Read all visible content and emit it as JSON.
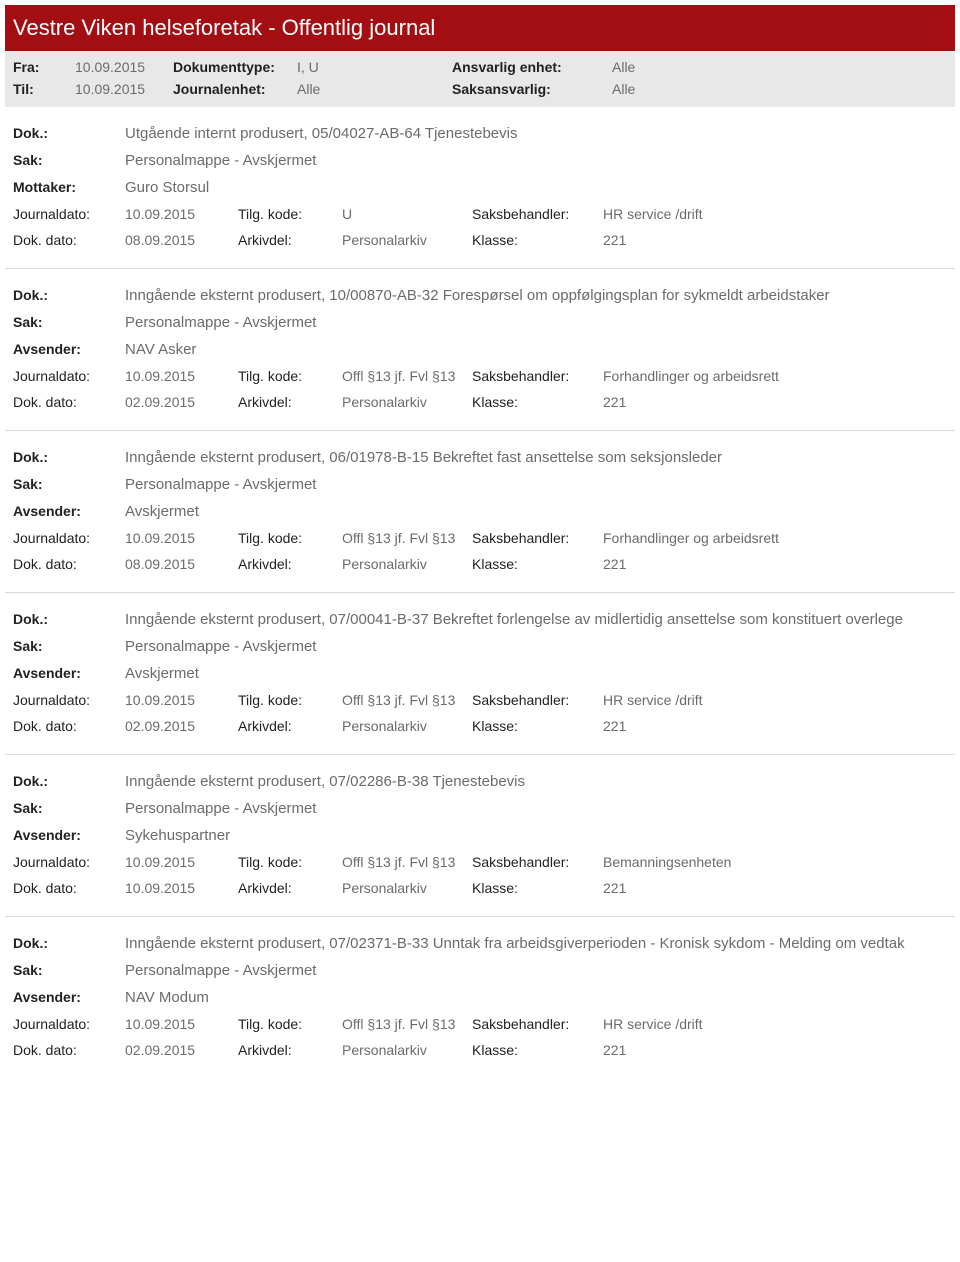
{
  "header": {
    "title": "Vestre Viken helseforetak - Offentlig journal"
  },
  "meta": {
    "fra_label": "Fra:",
    "fra_value": "10.09.2015",
    "til_label": "Til:",
    "til_value": "10.09.2015",
    "doktype_label": "Dokumenttype:",
    "doktype_value": "I, U",
    "journalenhet_label": "Journalenhet:",
    "journalenhet_value": "Alle",
    "ansvarlig_label": "Ansvarlig enhet:",
    "ansvarlig_value": "Alle",
    "saksansvarlig_label": "Saksansvarlig:",
    "saksansvarlig_value": "Alle"
  },
  "labels": {
    "dok": "Dok.:",
    "sak": "Sak:",
    "mottaker": "Mottaker:",
    "avsender": "Avsender:",
    "journaldato": "Journaldato:",
    "dokdato": "Dok. dato:",
    "tilgkode": "Tilg. kode:",
    "arkivdel": "Arkivdel:",
    "saksbehandler": "Saksbehandler:",
    "klasse": "Klasse:"
  },
  "entries": [
    {
      "dok": "Utgående internt produsert, 05/04027-AB-64 Tjenestebevis",
      "sak": "Personalmappe - Avskjermet",
      "party_label": "Mottaker:",
      "party": "Guro Storsul",
      "journaldato": "10.09.2015",
      "dokdato": "08.09.2015",
      "tilgkode": "U",
      "arkivdel": "Personalarkiv",
      "saksbehandler": "HR service /drift",
      "klasse": "221"
    },
    {
      "dok": "Inngående eksternt produsert, 10/00870-AB-32 Forespørsel om oppfølgingsplan for sykmeldt arbeidstaker",
      "sak": "Personalmappe - Avskjermet",
      "party_label": "Avsender:",
      "party": "NAV Asker",
      "journaldato": "10.09.2015",
      "dokdato": "02.09.2015",
      "tilgkode": "Offl §13 jf. Fvl §13",
      "arkivdel": "Personalarkiv",
      "saksbehandler": "Forhandlinger og arbeidsrett",
      "klasse": "221"
    },
    {
      "dok": "Inngående eksternt produsert, 06/01978-B-15 Bekreftet fast ansettelse som seksjonsleder",
      "sak": "Personalmappe - Avskjermet",
      "party_label": "Avsender:",
      "party": "Avskjermet",
      "journaldato": "10.09.2015",
      "dokdato": "08.09.2015",
      "tilgkode": "Offl §13 jf. Fvl §13",
      "arkivdel": "Personalarkiv",
      "saksbehandler": "Forhandlinger og arbeidsrett",
      "klasse": "221"
    },
    {
      "dok": "Inngående eksternt produsert, 07/00041-B-37 Bekreftet forlengelse av midlertidig ansettelse som konstituert overlege",
      "sak": "Personalmappe - Avskjermet",
      "party_label": "Avsender:",
      "party": "Avskjermet",
      "journaldato": "10.09.2015",
      "dokdato": "02.09.2015",
      "tilgkode": "Offl §13 jf. Fvl §13",
      "arkivdel": "Personalarkiv",
      "saksbehandler": "HR service /drift",
      "klasse": "221"
    },
    {
      "dok": "Inngående eksternt produsert, 07/02286-B-38 Tjenestebevis",
      "sak": "Personalmappe - Avskjermet",
      "party_label": "Avsender:",
      "party": "Sykehuspartner",
      "journaldato": "10.09.2015",
      "dokdato": "10.09.2015",
      "tilgkode": "Offl §13 jf. Fvl §13",
      "arkivdel": "Personalarkiv",
      "saksbehandler": "Bemanningsenheten",
      "klasse": "221"
    },
    {
      "dok": "Inngående eksternt produsert, 07/02371-B-33 Unntak fra arbeidsgiverperioden - Kronisk sykdom - Melding om vedtak",
      "sak": "Personalmappe - Avskjermet",
      "party_label": "Avsender:",
      "party": "NAV Modum",
      "journaldato": "10.09.2015",
      "dokdato": "02.09.2015",
      "tilgkode": "Offl §13 jf. Fvl §13",
      "arkivdel": "Personalarkiv",
      "saksbehandler": "HR service /drift",
      "klasse": "221"
    }
  ]
}
